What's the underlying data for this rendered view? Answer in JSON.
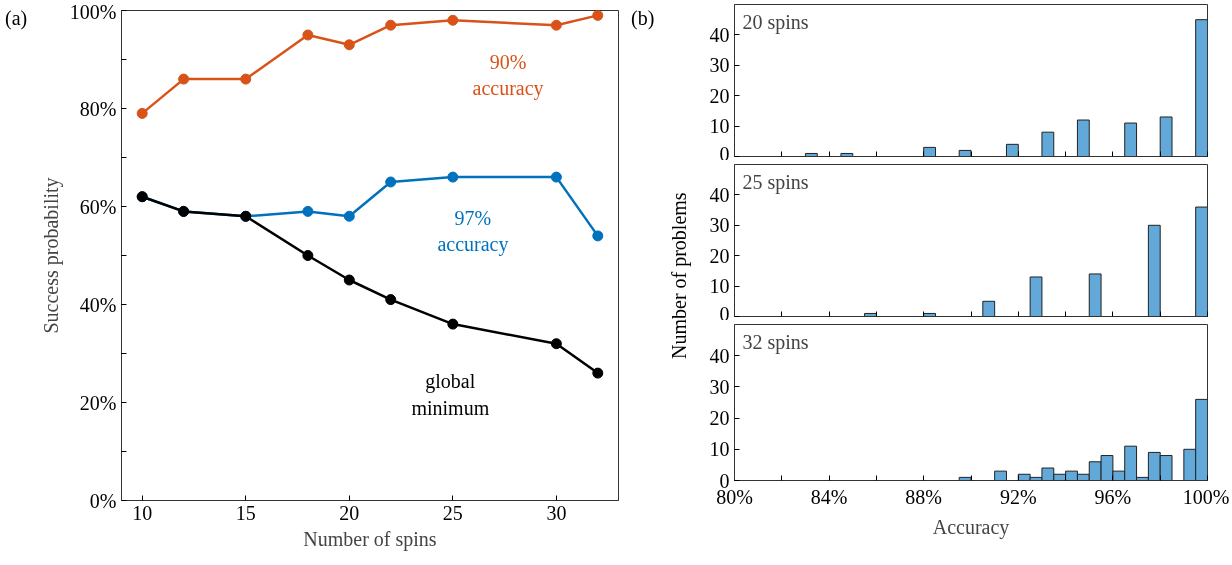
{
  "chart_data": [
    {
      "type": "line",
      "xlabel": "Number of spins",
      "ylabel": "Success probability",
      "x": [
        10,
        12,
        15,
        18,
        20,
        22,
        25,
        30,
        32
      ],
      "series": [
        {
          "color": "#d95319",
          "values": [
            79,
            86,
            86,
            95,
            93,
            97,
            98,
            97,
            99
          ]
        },
        {
          "color": "#0072bd",
          "values": [
            62,
            59,
            58,
            59,
            58,
            65,
            66,
            66,
            54
          ]
        },
        {
          "color": "#000000",
          "values": [
            62,
            59,
            58,
            50,
            45,
            41,
            36,
            32,
            26
          ]
        }
      ],
      "xlim": [
        9,
        33
      ],
      "xticks": [
        10,
        15,
        20,
        25,
        30
      ],
      "ylim": [
        0,
        100
      ],
      "yticks": [
        {
          "value": 0,
          "label": "0%"
        },
        {
          "value": 10,
          "label": null
        },
        {
          "value": 20,
          "label": "20%"
        },
        {
          "value": 30,
          "label": null
        },
        {
          "value": 40,
          "label": "40%"
        },
        {
          "value": 50,
          "label": null
        },
        {
          "value": 60,
          "label": "60%"
        },
        {
          "value": 70,
          "label": null
        },
        {
          "value": 80,
          "label": "80%"
        },
        {
          "value": 90,
          "label": null
        },
        {
          "value": 100,
          "label": "100%"
        }
      ],
      "marker": "circle",
      "line_style": "solid",
      "grid": false,
      "annotations": [
        "(a)",
        "90% accuracy",
        "97% accuracy",
        "global minimum"
      ]
    },
    {
      "type": "histogram",
      "title": "20 spins",
      "color": "#62a9d9",
      "bins": [
        80,
        80.5,
        81,
        81.5,
        82,
        82.5,
        83,
        83.5,
        84,
        84.5,
        85,
        85.5,
        86,
        86.5,
        87,
        87.5,
        88,
        88.5,
        89,
        89.5,
        90,
        90.5,
        91,
        91.5,
        92,
        92.5,
        93,
        93.5,
        94,
        94.5,
        95,
        95.5,
        96,
        96.5,
        97,
        97.5,
        98,
        98.5,
        99,
        99.5,
        100
      ],
      "values": [
        0,
        0,
        0,
        0,
        0,
        0,
        1,
        0,
        0,
        1,
        0,
        0,
        0,
        0,
        0,
        0,
        3,
        0,
        0,
        2,
        0,
        0,
        0,
        4,
        0,
        0,
        8,
        0,
        0,
        12,
        0,
        0,
        0,
        11,
        0,
        0,
        13,
        0,
        0,
        45
      ],
      "xlim": [
        80,
        100
      ],
      "xticks": [
        80,
        82,
        84,
        86,
        88,
        90,
        92,
        94,
        96,
        98,
        100
      ],
      "ylim": [
        0,
        50
      ],
      "yticks": [
        0,
        10,
        20,
        30,
        40
      ],
      "tick_labels": "y",
      "grid": false,
      "annotations": [
        "(b)"
      ]
    },
    {
      "type": "histogram",
      "title": "25 spins",
      "color": "#62a9d9",
      "ylabel": "Number of problems",
      "bins": [
        80,
        80.5,
        81,
        81.5,
        82,
        82.5,
        83,
        83.5,
        84,
        84.5,
        85,
        85.5,
        86,
        86.5,
        87,
        87.5,
        88,
        88.5,
        89,
        89.5,
        90,
        90.5,
        91,
        91.5,
        92,
        92.5,
        93,
        93.5,
        94,
        94.5,
        95,
        95.5,
        96,
        96.5,
        97,
        97.5,
        98,
        98.5,
        99,
        99.5,
        100
      ],
      "values": [
        0,
        0,
        0,
        0,
        0,
        0,
        0,
        0,
        0,
        0,
        0,
        1,
        0,
        0,
        0,
        0,
        1,
        0,
        0,
        0,
        0,
        5,
        0,
        0,
        0,
        13,
        0,
        0,
        0,
        0,
        14,
        0,
        0,
        0,
        0,
        30,
        0,
        0,
        0,
        36
      ],
      "xlim": [
        80,
        100
      ],
      "xticks": [
        80,
        82,
        84,
        86,
        88,
        90,
        92,
        94,
        96,
        98,
        100
      ],
      "ylim": [
        0,
        50
      ],
      "yticks": [
        0,
        10,
        20,
        30,
        40
      ],
      "tick_labels": "y",
      "grid": false
    },
    {
      "type": "histogram",
      "title": "32 spins",
      "color": "#62a9d9",
      "xlabel": "Accuracy",
      "bins": [
        80,
        80.5,
        81,
        81.5,
        82,
        82.5,
        83,
        83.5,
        84,
        84.5,
        85,
        85.5,
        86,
        86.5,
        87,
        87.5,
        88,
        88.5,
        89,
        89.5,
        90,
        90.5,
        91,
        91.5,
        92,
        92.5,
        93,
        93.5,
        94,
        94.5,
        95,
        95.5,
        96,
        96.5,
        97,
        97.5,
        98,
        98.5,
        99,
        99.5,
        100
      ],
      "values": [
        0,
        0,
        0,
        0,
        0,
        0,
        0,
        0,
        0,
        0,
        0,
        0,
        0,
        0,
        0,
        0,
        0,
        0,
        0,
        1,
        0,
        0,
        3,
        0,
        2,
        1,
        4,
        2,
        3,
        2,
        6,
        8,
        3,
        11,
        1,
        9,
        8,
        0,
        10,
        26
      ],
      "xlim": [
        80,
        100
      ],
      "xticks": [
        {
          "value": 80,
          "label": "80%"
        },
        {
          "value": 82,
          "label": null
        },
        {
          "value": 84,
          "label": "84%"
        },
        {
          "value": 86,
          "label": null
        },
        {
          "value": 88,
          "label": "88%"
        },
        {
          "value": 90,
          "label": null
        },
        {
          "value": 92,
          "label": "92%"
        },
        {
          "value": 94,
          "label": null
        },
        {
          "value": 96,
          "label": "96%"
        },
        {
          "value": 98,
          "label": null
        },
        {
          "value": 100,
          "label": "100%"
        }
      ],
      "ylim": [
        0,
        50
      ],
      "yticks": [
        0,
        10,
        20,
        30,
        40
      ],
      "grid": false
    }
  ]
}
